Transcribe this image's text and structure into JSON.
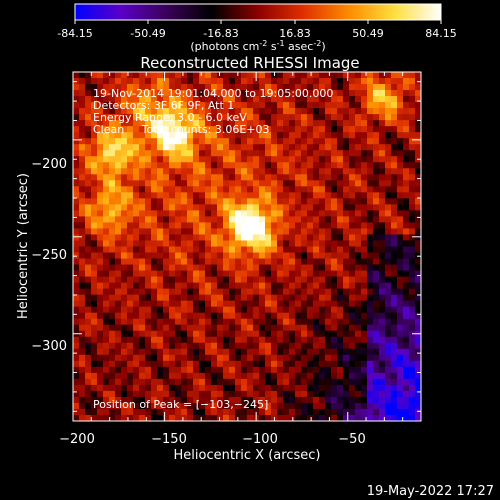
{
  "colorbar": {
    "tick_labels": [
      "-84.15",
      "-50.49",
      "-16.83",
      "16.83",
      "50.49",
      "84.15"
    ],
    "range": [
      -84.15,
      84.15
    ],
    "units_prefix": "(photons cm",
    "units_exp1": "-2",
    "units_mid": " s",
    "units_exp2": "-1",
    "units_mid2": " asec",
    "units_exp3": "-2",
    "units_suffix": ")",
    "colormap": [
      "#0000ff",
      "#5a00c8",
      "#3a0058",
      "#000000",
      "#8c0000",
      "#e03000",
      "#ff8c00",
      "#ffe040",
      "#ffffff"
    ]
  },
  "chart_data": {
    "type": "heatmap",
    "title": "Reconstructed RHESSI Image",
    "xlabel": "Heliocentric X (arcsec)",
    "ylabel": "Heliocentric Y (arcsec)",
    "xlim": [
      -200,
      -10
    ],
    "ylim": [
      -345,
      -165
    ],
    "x_ticks": [
      -200,
      -150,
      -100,
      -50
    ],
    "y_ticks": [
      -200,
      -250,
      -300
    ],
    "x_tick_labels": [
      "−200",
      "−150",
      "−100",
      "−50"
    ],
    "y_tick_labels": [
      "−200",
      "−250",
      "−300"
    ],
    "annotations": [
      "19-Nov-2014 19:01:04.000 to 19:05:00.000",
      "Detectors: 3F 6F 9F, Att 1",
      "Energy Range: 3.0 - 6.0 keV",
      "Clean     Total counts: 3.06E+03"
    ],
    "peak_label": "Position of Peak = [−103,−245]",
    "peak": [
      -103,
      -245
    ],
    "bright_sources": [
      {
        "x": -103,
        "y": -245,
        "value": 84.15
      },
      {
        "x": -145,
        "y": -196,
        "value": 70
      },
      {
        "x": -178,
        "y": -206,
        "value": 55
      },
      {
        "x": -30,
        "y": -178,
        "value": 50
      },
      {
        "x": -180,
        "y": -236,
        "value": 40
      },
      {
        "x": -160,
        "y": -180,
        "value": 30
      }
    ]
  },
  "footer": {
    "timestamp": "19-May-2022 17:27"
  }
}
